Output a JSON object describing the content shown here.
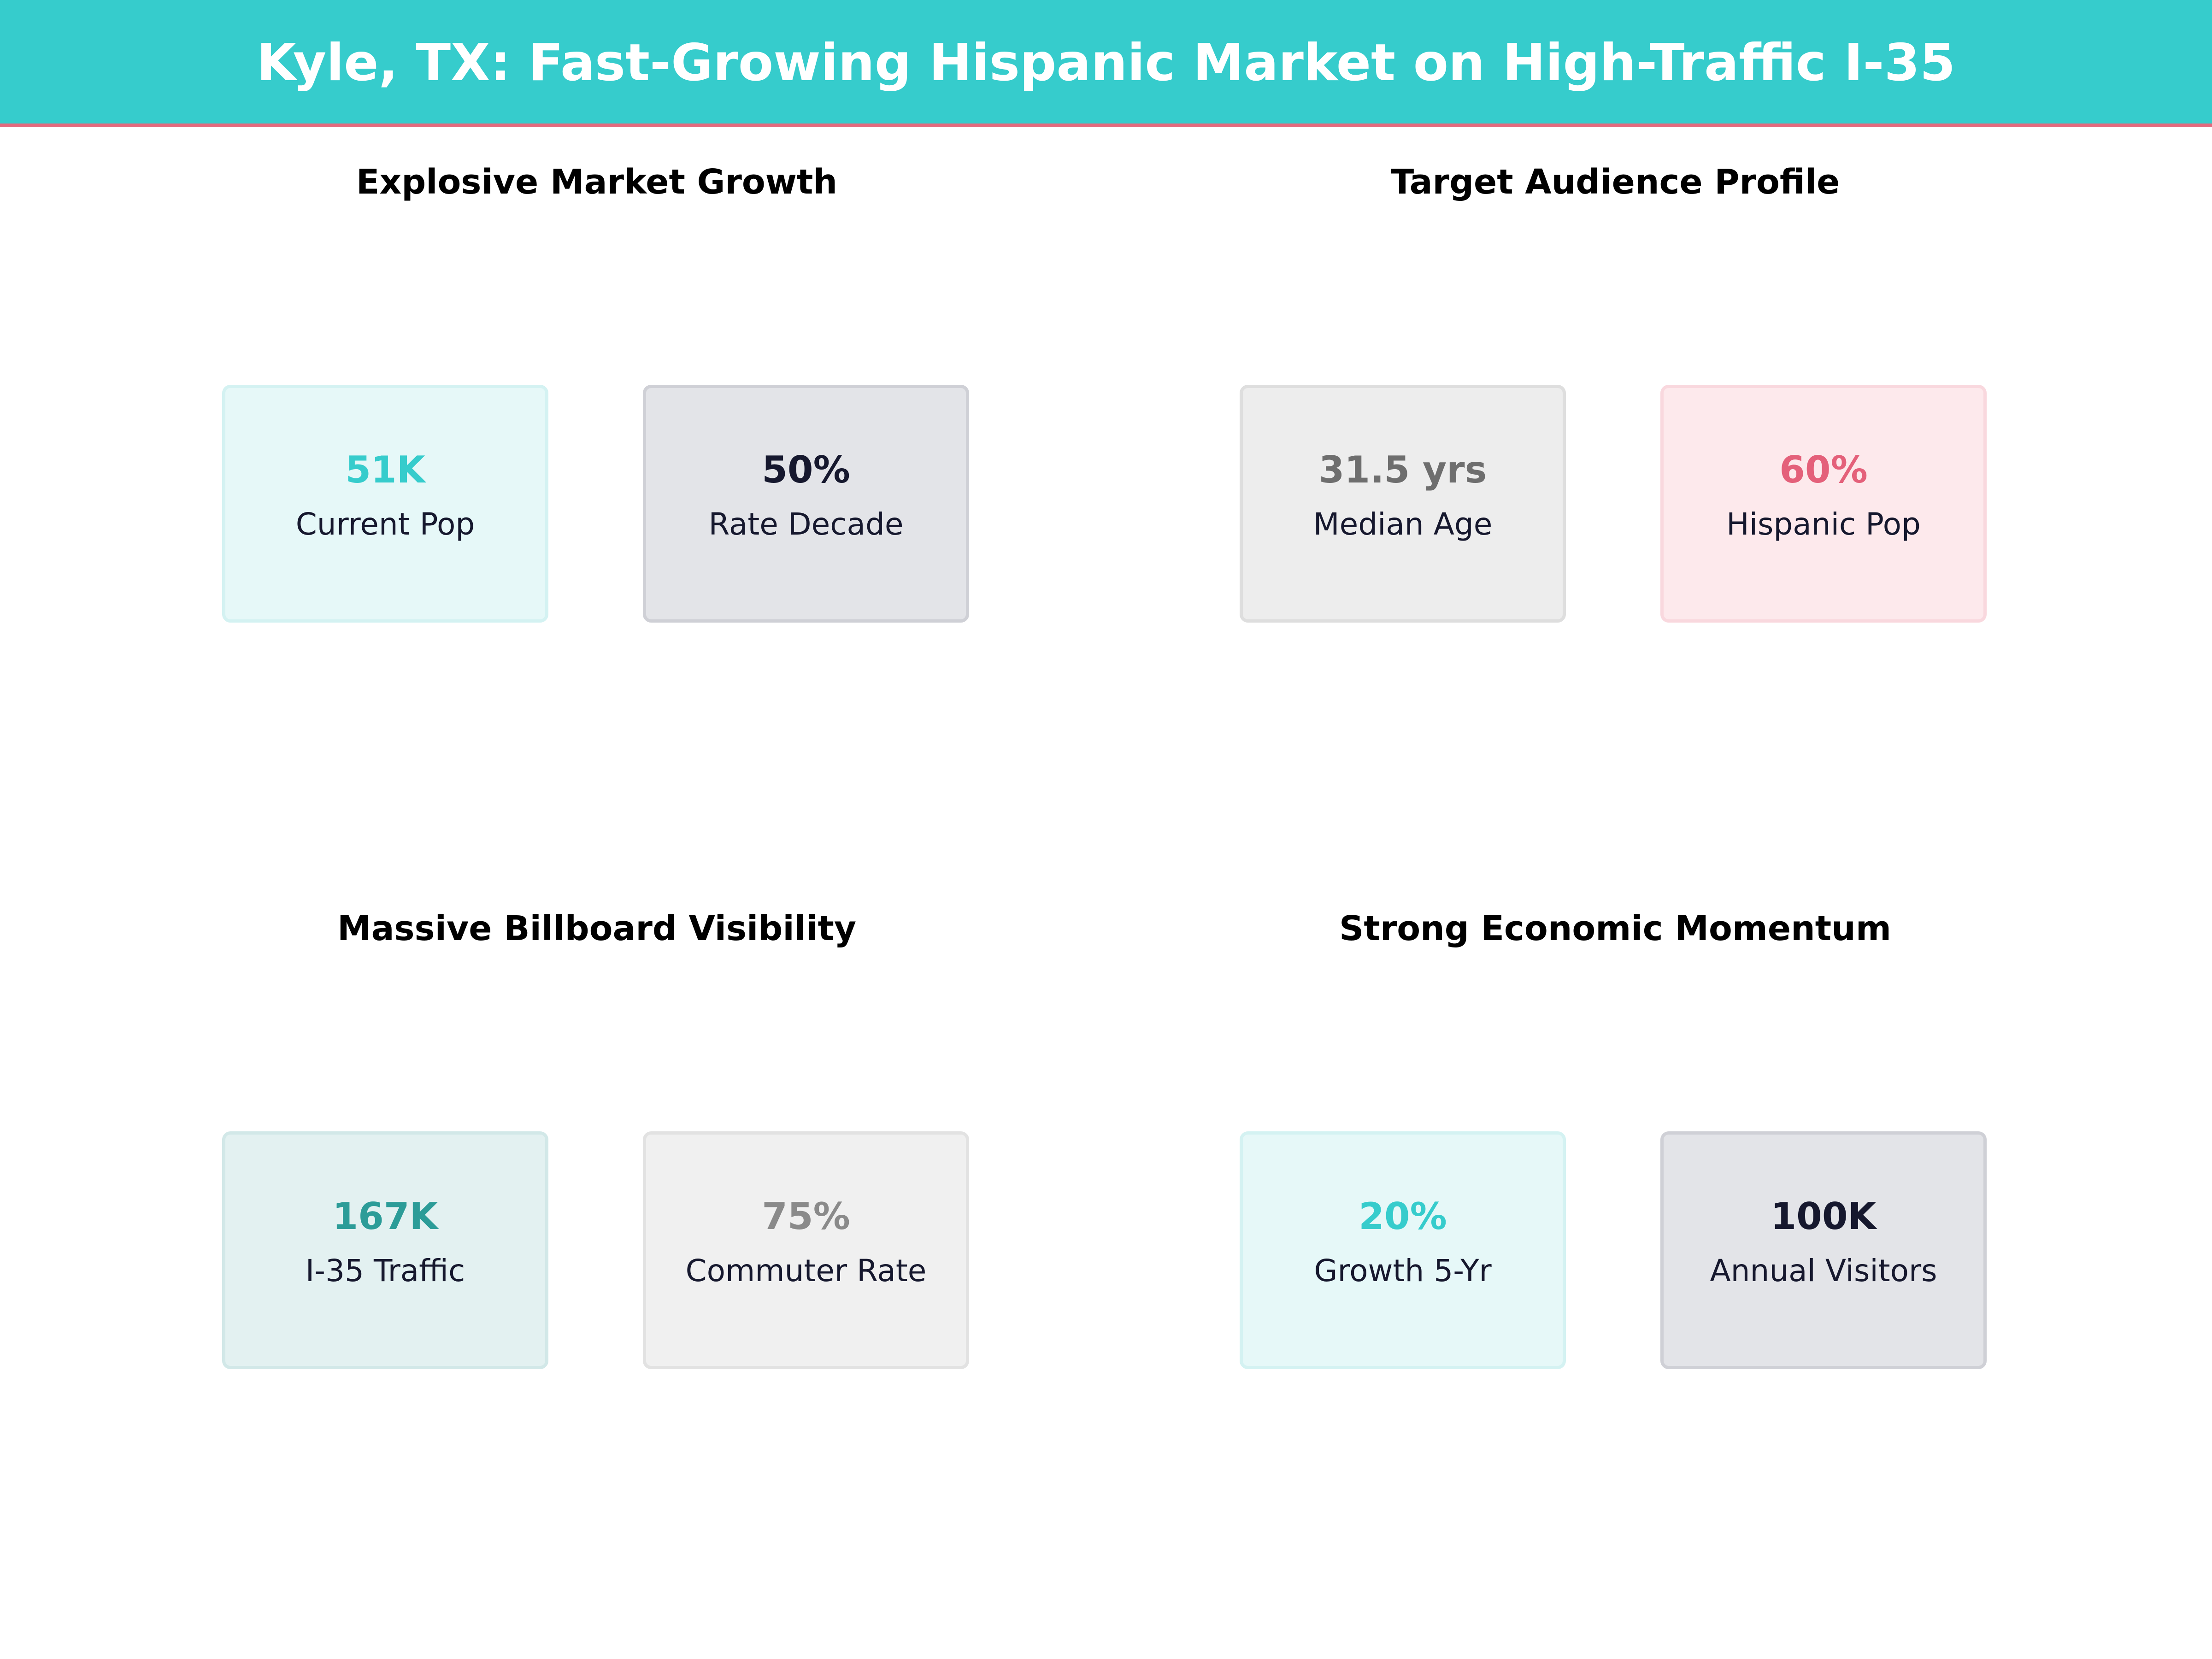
{
  "header": {
    "title": "Kyle, TX: Fast-Growing Hispanic Market on High-Traffic I-35",
    "background_color": "#36cccc",
    "accent_line_color": "#e46a7e"
  },
  "panels": [
    {
      "title": "Explosive Market Growth",
      "cards": [
        {
          "value": "51K",
          "label": "Current Pop",
          "value_color": "#36cccc",
          "fill_color": "#e6f8f8",
          "border_color": "#d4f2f2"
        },
        {
          "value": "50%",
          "label": "Rate Decade",
          "value_color": "#16182e",
          "fill_color": "#e3e4e8",
          "border_color": "#cfd0d6"
        }
      ]
    },
    {
      "title": "Target Audience Profile",
      "cards": [
        {
          "value": "31.5 yrs",
          "label": "Median Age",
          "value_color": "#6e6e6e",
          "fill_color": "#ededed",
          "border_color": "#dedede"
        },
        {
          "value": "60%",
          "label": "Hispanic Pop",
          "value_color": "#e4607a",
          "fill_color": "#fde9ec",
          "border_color": "#f9d8de"
        }
      ]
    },
    {
      "title": "Massive Billboard Visibility",
      "cards": [
        {
          "value": "167K",
          "label": "I-35 Traffic",
          "value_color": "#2c9c98",
          "fill_color": "#e3f1f1",
          "border_color": "#d2e8e8"
        },
        {
          "value": "75%",
          "label": "Commuter Rate",
          "value_color": "#8a8a8a",
          "fill_color": "#f0f0f0",
          "border_color": "#e2e2e2"
        }
      ]
    },
    {
      "title": "Strong Economic Momentum",
      "cards": [
        {
          "value": "20%",
          "label": "Growth 5-Yr",
          "value_color": "#36cccc",
          "fill_color": "#e6f8f8",
          "border_color": "#d4f2f2"
        },
        {
          "value": "100K",
          "label": "Annual Visitors",
          "value_color": "#16182e",
          "fill_color": "#e3e4e8",
          "border_color": "#cfd0d6"
        }
      ]
    }
  ]
}
